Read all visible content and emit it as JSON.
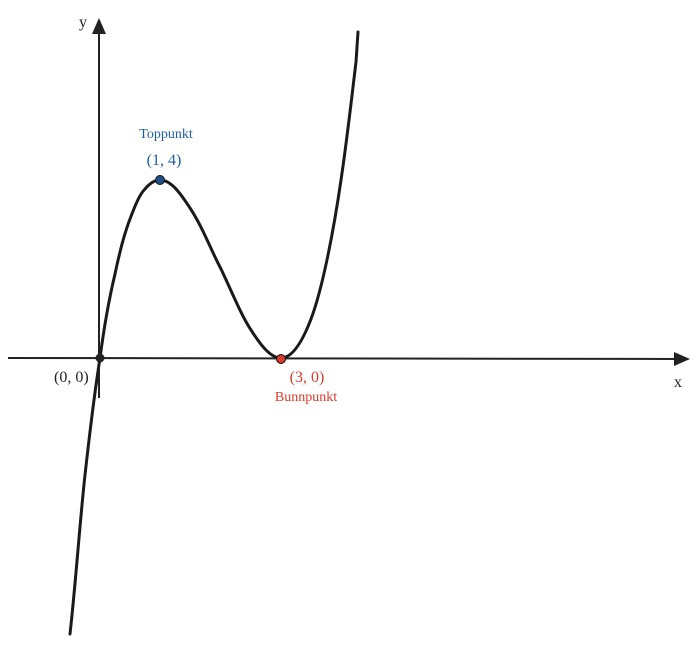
{
  "axes": {
    "x_label": "x",
    "y_label": "y"
  },
  "points": [
    {
      "label": "(0, 0)"
    },
    {
      "label": "(1, 4)",
      "name": "Toppunkt"
    },
    {
      "label": "(3, 0)",
      "name": "Bunnpunkt"
    }
  ]
}
